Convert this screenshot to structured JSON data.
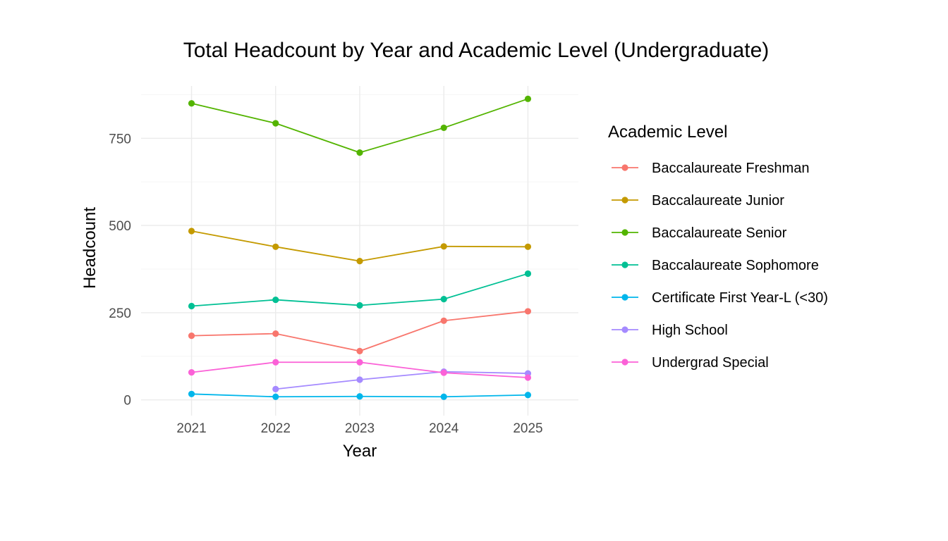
{
  "chart_data": {
    "type": "line",
    "title": "Total Headcount by Year and Academic Level (Undergraduate)",
    "xlabel": "Year",
    "ylabel": "Headcount",
    "x": [
      2021,
      2022,
      2023,
      2024,
      2025
    ],
    "x_tick_labels": [
      "2021",
      "2022",
      "2023",
      "2024",
      "2025"
    ],
    "xlim": [
      2020.4,
      2025.6
    ],
    "y_ticks": [
      0,
      250,
      500,
      750
    ],
    "y_tick_labels": [
      "0",
      "250",
      "500",
      "750"
    ],
    "ylim": [
      -45,
      900
    ],
    "grid": true,
    "legend_title": "Academic Level",
    "legend_position": "right",
    "series": [
      {
        "name": "Baccalaureate Freshman",
        "color": "#F8766D",
        "values": [
          184,
          190,
          140,
          227,
          254
        ]
      },
      {
        "name": "Baccalaureate Junior",
        "color": "#C49A00",
        "values": [
          484,
          439,
          398,
          440,
          439
        ]
      },
      {
        "name": "Baccalaureate Senior",
        "color": "#53B400",
        "values": [
          850,
          793,
          709,
          780,
          863
        ]
      },
      {
        "name": "Baccalaureate Sophomore",
        "color": "#00C094",
        "values": [
          269,
          287,
          271,
          289,
          362
        ]
      },
      {
        "name": "Certificate First Year-L (<30)",
        "color": "#00B6EB",
        "values": [
          17,
          9,
          10,
          9,
          14
        ]
      },
      {
        "name": "High School",
        "color": "#A58AFF",
        "values": [
          null,
          31,
          58,
          81,
          76
        ]
      },
      {
        "name": "Undergrad Special",
        "color": "#FB61D7",
        "values": [
          79,
          108,
          108,
          78,
          64
        ]
      }
    ]
  }
}
